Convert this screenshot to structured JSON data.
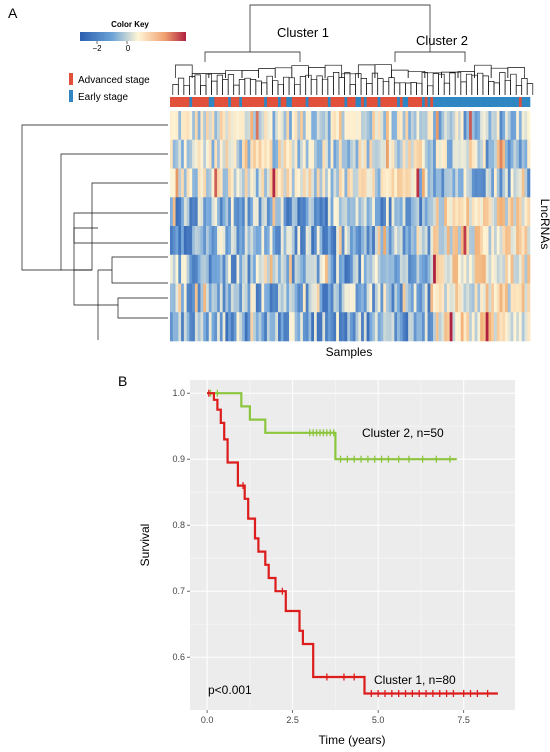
{
  "panel_a": {
    "label": "A",
    "color_key": {
      "title": "Color Key",
      "ticks": [
        "−2",
        "0"
      ],
      "low_color": "#2b5fb0",
      "mid_color": "#fff5d6",
      "high_color": "#b02040"
    },
    "legend": [
      {
        "label": "Advanced stage",
        "color": "#e0503a"
      },
      {
        "label": "Early stage",
        "color": "#2f86c2"
      }
    ],
    "cluster_labels": [
      "Cluster 1",
      "Cluster 2"
    ],
    "xlabel": "Samples",
    "ylabel": "LncRNAs"
  },
  "panel_b": {
    "label": "B",
    "annotation": "p<0.001"
  },
  "chart_data": {
    "type": "line",
    "xlabel": "Time (years)",
    "ylabel": "Survival",
    "xlim": [
      -0.5,
      9.0
    ],
    "ylim": [
      0.52,
      1.02
    ],
    "xticks": [
      0.0,
      2.5,
      5.0,
      7.5
    ],
    "xtick_labels": [
      "0.0",
      "2.5",
      "5.0",
      "7.5"
    ],
    "yticks": [
      0.6,
      0.7,
      0.8,
      0.9,
      1.0
    ],
    "ytick_labels": [
      "0.6",
      "0.7",
      "0.8",
      "0.9",
      "1.0"
    ],
    "grid": true,
    "series": [
      {
        "name": "Cluster 2, n=50",
        "color": "#8cc63f",
        "steps": [
          [
            0,
            1.0
          ],
          [
            1.0,
            0.98
          ],
          [
            1.25,
            0.96
          ],
          [
            1.7,
            0.94
          ],
          [
            3.75,
            0.9
          ],
          [
            7.3,
            0.9
          ]
        ],
        "censor": [
          0.1,
          0.3,
          3.0,
          3.1,
          3.2,
          3.3,
          3.4,
          3.5,
          3.6,
          3.7,
          3.9,
          4.1,
          4.3,
          4.5,
          4.7,
          4.9,
          5.1,
          5.3,
          5.6,
          5.9,
          6.3,
          6.7,
          7.1
        ]
      },
      {
        "name": "Cluster 1, n=80",
        "color": "#dd1c1c",
        "steps": [
          [
            0,
            1.0
          ],
          [
            0.2,
            0.99
          ],
          [
            0.3,
            0.975
          ],
          [
            0.4,
            0.955
          ],
          [
            0.5,
            0.93
          ],
          [
            0.6,
            0.895
          ],
          [
            0.9,
            0.86
          ],
          [
            1.1,
            0.84
          ],
          [
            1.2,
            0.81
          ],
          [
            1.4,
            0.78
          ],
          [
            1.5,
            0.76
          ],
          [
            1.7,
            0.74
          ],
          [
            1.8,
            0.72
          ],
          [
            2.0,
            0.7
          ],
          [
            2.3,
            0.67
          ],
          [
            2.7,
            0.64
          ],
          [
            2.8,
            0.62
          ],
          [
            3.1,
            0.57
          ],
          [
            4.6,
            0.545
          ],
          [
            8.5,
            0.545
          ]
        ],
        "censor": [
          0.05,
          1.05,
          2.2,
          3.5,
          4.0,
          4.3,
          4.8,
          5.0,
          5.2,
          5.4,
          5.6,
          5.8,
          6.0,
          6.2,
          6.4,
          6.6,
          6.8,
          7.0,
          7.2,
          7.5,
          7.7,
          7.9,
          8.2
        ]
      }
    ]
  }
}
